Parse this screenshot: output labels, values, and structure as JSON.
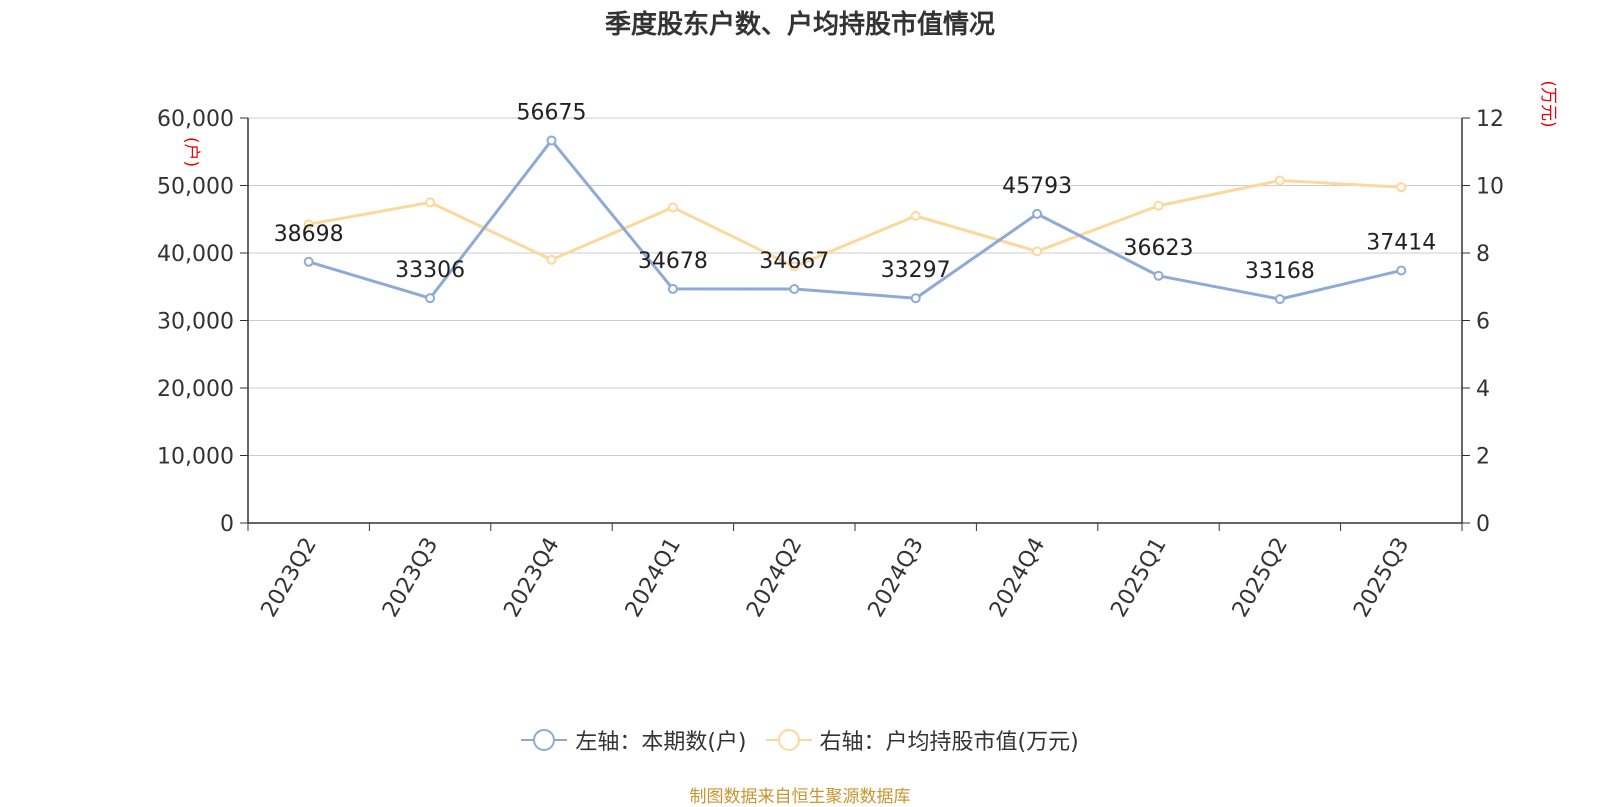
{
  "chart_data": {
    "type": "line",
    "title": "季度股东户数、户均持股市值情况",
    "categories": [
      "2023Q2",
      "2023Q3",
      "2023Q4",
      "2024Q1",
      "2024Q2",
      "2024Q3",
      "2024Q4",
      "2025Q1",
      "2025Q2",
      "2025Q3"
    ],
    "left_axis": {
      "unit_label": "(户)",
      "ylim": [
        0,
        60000
      ],
      "ticks": [
        "0",
        "10,000",
        "20,000",
        "30,000",
        "40,000",
        "50,000",
        "60,000"
      ]
    },
    "right_axis": {
      "unit_label": "(万元)",
      "ylim": [
        0,
        12
      ],
      "ticks": [
        "0",
        "2",
        "4",
        "6",
        "8",
        "10",
        "12"
      ]
    },
    "series": [
      {
        "name": "左轴：本期数(户)",
        "axis": "left",
        "color": "#8eaad7",
        "values": [
          38698,
          33306,
          56675,
          34678,
          34667,
          33297,
          45793,
          36623,
          33168,
          37414
        ],
        "labels": [
          "38698",
          "33306",
          "56675",
          "34678",
          "34667",
          "33297",
          "45793",
          "36623",
          "33168",
          "37414"
        ]
      },
      {
        "name": "右轴：户均持股市值(万元)",
        "axis": "right",
        "color": "#fdd89c",
        "values": [
          8.85,
          9.5,
          7.8,
          9.35,
          7.6,
          9.1,
          8.05,
          9.4,
          10.15,
          9.95
        ]
      }
    ],
    "grid": true,
    "legend_position": "bottom",
    "source": "制图数据来自恒生聚源数据库"
  }
}
